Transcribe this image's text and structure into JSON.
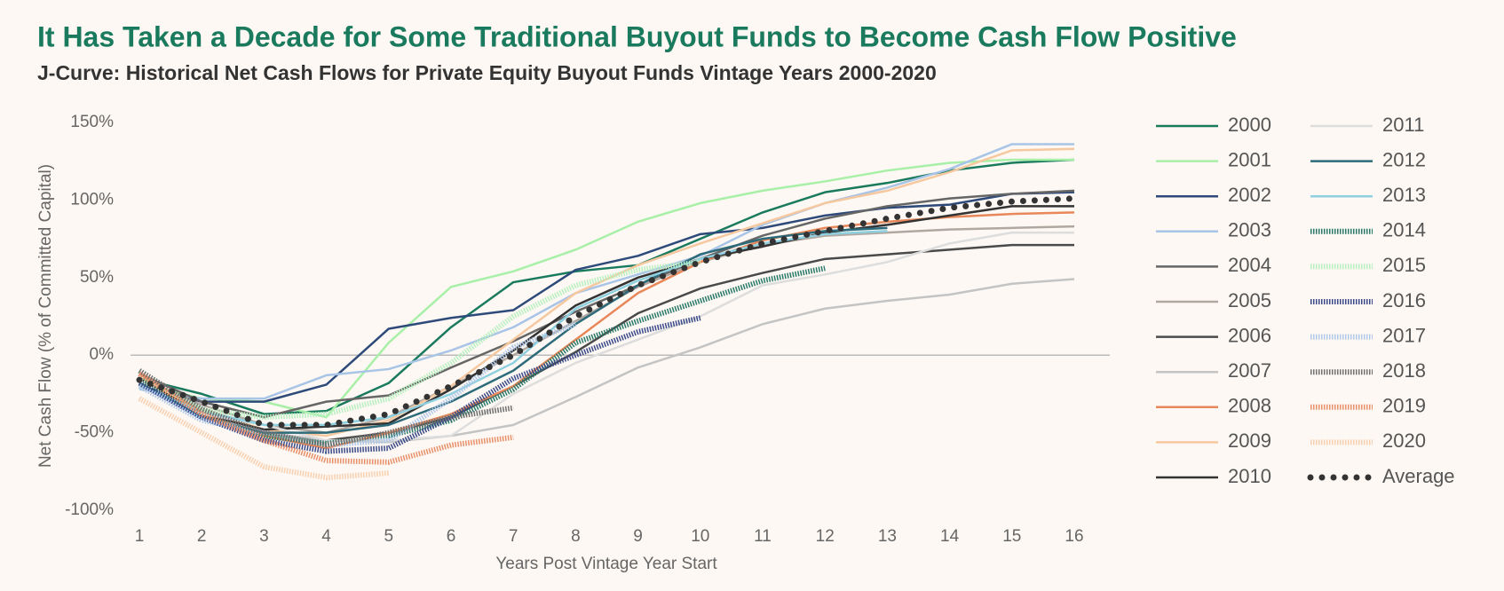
{
  "chart_data": {
    "type": "line",
    "title": "It Has Taken a Decade for Some Traditional Buyout Funds to Become Cash Flow Positive",
    "subtitle": "J-Curve: Historical Net Cash Flows for Private Equity Buyout Funds Vintage Years 2000-2020",
    "x_label": "Years Post Vintage Year Start",
    "y_label": "Net Cash Flow (% of Committed Capital)",
    "x": [
      1,
      2,
      3,
      4,
      5,
      6,
      7,
      8,
      9,
      10,
      11,
      12,
      13,
      14,
      15,
      16
    ],
    "xlim": [
      1,
      16
    ],
    "xticks": [
      1,
      2,
      3,
      4,
      5,
      6,
      7,
      8,
      9,
      10,
      11,
      12,
      13,
      14,
      15,
      16
    ],
    "ylim": [
      -100,
      150
    ],
    "yticks": [
      {
        "value": -100,
        "label": "-100%"
      },
      {
        "value": -50,
        "label": "-50%"
      },
      {
        "value": 0,
        "label": "0%"
      },
      {
        "value": 50,
        "label": "50%"
      },
      {
        "value": 100,
        "label": "100%"
      },
      {
        "value": 150,
        "label": "150%"
      }
    ],
    "grid": false,
    "legend": "right",
    "series": [
      {
        "name": "2000",
        "color": "#1a7a5e",
        "style": "solid",
        "values": [
          -15,
          -25,
          -38,
          -36,
          -18,
          18,
          47,
          54,
          58,
          75,
          92,
          105,
          111,
          119,
          124,
          126
        ]
      },
      {
        "name": "2001",
        "color": "#a8f0a8",
        "style": "solid",
        "values": [
          -18,
          -28,
          -30,
          -40,
          8,
          44,
          54,
          68,
          86,
          98,
          106,
          112,
          119,
          124,
          126,
          126
        ]
      },
      {
        "name": "2002",
        "color": "#2d4a7a",
        "style": "solid",
        "values": [
          -20,
          -30,
          -30,
          -19,
          17,
          24,
          29,
          55,
          64,
          78,
          82,
          90,
          95,
          97,
          104,
          105
        ]
      },
      {
        "name": "2003",
        "color": "#a8c4e6",
        "style": "solid",
        "values": [
          -22,
          -28,
          -28,
          -13,
          -9,
          3,
          18,
          40,
          52,
          64,
          84,
          98,
          108,
          120,
          136,
          136
        ]
      },
      {
        "name": "2004",
        "color": "#666666",
        "style": "solid",
        "values": [
          -12,
          -30,
          -40,
          -30,
          -26,
          -8,
          9,
          28,
          45,
          62,
          77,
          88,
          96,
          101,
          104,
          106
        ]
      },
      {
        "name": "2005",
        "color": "#b0a8a0",
        "style": "solid",
        "values": [
          -15,
          -32,
          -45,
          -50,
          -40,
          -20,
          0,
          22,
          44,
          60,
          71,
          77,
          79,
          81,
          82,
          83
        ]
      },
      {
        "name": "2006",
        "color": "#4a4a4a",
        "style": "solid",
        "values": [
          -18,
          -40,
          -50,
          -55,
          -50,
          -40,
          -20,
          2,
          27,
          43,
          53,
          62,
          65,
          68,
          71,
          71
        ]
      },
      {
        "name": "2007",
        "color": "#c4c4c4",
        "style": "solid",
        "values": [
          -20,
          -36,
          -50,
          -55,
          -56,
          -52,
          -45,
          -27,
          -8,
          5,
          20,
          30,
          35,
          39,
          46,
          49
        ]
      },
      {
        "name": "2008",
        "color": "#e8885a",
        "style": "solid",
        "values": [
          -12,
          -38,
          -52,
          -60,
          -50,
          -38,
          -20,
          10,
          40,
          60,
          74,
          82,
          86,
          89,
          91,
          92
        ]
      },
      {
        "name": "2009",
        "color": "#f6c8a0",
        "style": "solid",
        "values": [
          -15,
          -35,
          -48,
          -52,
          -42,
          -20,
          10,
          40,
          58,
          72,
          85,
          98,
          106,
          118,
          132,
          133
        ]
      },
      {
        "name": "2010",
        "color": "#333333",
        "style": "solid",
        "values": [
          -15,
          -38,
          -48,
          -46,
          -44,
          -22,
          3,
          32,
          50,
          62,
          70,
          79,
          84,
          90,
          96,
          96
        ]
      },
      {
        "name": "2011",
        "color": "#dddddd",
        "style": "solid",
        "values": [
          -20,
          -38,
          -45,
          -55,
          -55,
          -52,
          -25,
          -5,
          10,
          25,
          45,
          52,
          60,
          72,
          79,
          79
        ]
      },
      {
        "name": "2012",
        "color": "#2d6a7a",
        "style": "solid",
        "values": [
          -18,
          -40,
          -50,
          -50,
          -45,
          -30,
          -10,
          20,
          45,
          65,
          75,
          80,
          82,
          null,
          null,
          null
        ]
      },
      {
        "name": "2013",
        "color": "#8ed0e0",
        "style": "solid",
        "values": [
          -20,
          -36,
          -45,
          -45,
          -40,
          -25,
          -5,
          30,
          48,
          62,
          72,
          78,
          80,
          null,
          null,
          null
        ]
      },
      {
        "name": "2014",
        "color": "#2a7a6a",
        "style": "dotted",
        "values": [
          -15,
          -40,
          -52,
          -57,
          -52,
          -42,
          -22,
          8,
          22,
          35,
          48,
          56,
          null,
          null,
          null,
          null
        ]
      },
      {
        "name": "2015",
        "color": "#b8f0c0",
        "style": "dotted",
        "values": [
          -15,
          -35,
          -40,
          -38,
          -28,
          -5,
          25,
          45,
          55,
          60,
          null,
          null,
          null,
          null,
          null,
          null
        ]
      },
      {
        "name": "2016",
        "color": "#3a4a8a",
        "style": "dotted",
        "values": [
          -18,
          -40,
          -55,
          -62,
          -60,
          -40,
          -15,
          0,
          15,
          24,
          null,
          null,
          null,
          null,
          null,
          null
        ]
      },
      {
        "name": "2017",
        "color": "#b0c8e8",
        "style": "dotted",
        "values": [
          -20,
          -42,
          -50,
          -58,
          -55,
          -28,
          5,
          20,
          null,
          null,
          null,
          null,
          null,
          null,
          null,
          null
        ]
      },
      {
        "name": "2018",
        "color": "#707070",
        "style": "dotted",
        "values": [
          -10,
          -35,
          -50,
          -58,
          -50,
          -40,
          -34,
          null,
          null,
          null,
          null,
          null,
          null,
          null,
          null,
          null
        ]
      },
      {
        "name": "2019",
        "color": "#e8906a",
        "style": "dotted",
        "values": [
          -12,
          -38,
          -55,
          -68,
          -69,
          -58,
          -53,
          null,
          null,
          null,
          null,
          null,
          null,
          null,
          null,
          null
        ]
      },
      {
        "name": "2020",
        "color": "#f8d0b0",
        "style": "dotted",
        "values": [
          -28,
          -50,
          -72,
          -79,
          -76,
          null,
          null,
          null,
          null,
          null,
          null,
          null,
          null,
          null,
          null,
          null
        ]
      },
      {
        "name": "Average",
        "color": "#333333",
        "style": "dots",
        "values": [
          -16,
          -30,
          -45,
          -45,
          -38,
          -20,
          0,
          25,
          45,
          60,
          72,
          80,
          88,
          95,
          99,
          101
        ]
      }
    ]
  }
}
